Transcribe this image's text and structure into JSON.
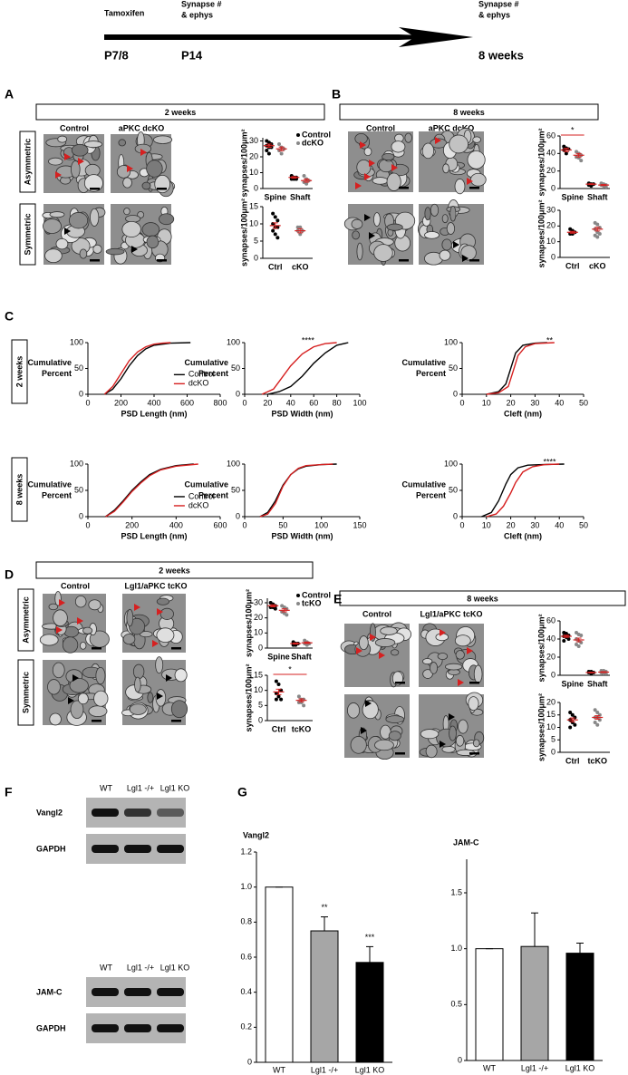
{
  "figure": {
    "timeline": {
      "events": [
        {
          "label": [
            "Tamoxifen"
          ],
          "time": "P7/8"
        },
        {
          "label": [
            "Synapse #",
            "& ephys"
          ],
          "time": "P14"
        },
        {
          "label": [
            "Synapse #",
            "& ephys"
          ],
          "time": "8 weeks"
        }
      ]
    },
    "panels": [
      {
        "letter": "A",
        "title": "2  weeks",
        "columns": [
          "Control",
          "aPKC dcKO"
        ],
        "rows": [
          "Asymmetric",
          "Symmetric"
        ]
      },
      {
        "letter": "B",
        "title": "8 weeks",
        "columns": [
          "Control",
          "aPKC dcKO"
        ]
      },
      {
        "letter": "C",
        "rows": [
          "2 weeks",
          "8 weeks"
        ]
      },
      {
        "letter": "D",
        "title": "2  weeks",
        "columns": [
          "Control",
          "Lgl1/aPKC tcKO"
        ],
        "rows": [
          "Asymmetric",
          "Symmetric"
        ]
      },
      {
        "letter": "E",
        "title": "8 weeks",
        "columns": [
          "Control",
          "Lgl1/aPKC tcKO"
        ]
      },
      {
        "letter": "F",
        "blots": [
          {
            "lanes": [
              "WT",
              "Lgl1 -/+",
              "Lgl1 KO"
            ],
            "bands": [
              "Vangl2",
              "GAPDH"
            ]
          },
          {
            "lanes": [
              "WT",
              "Lgl1 -/+",
              "Lgl1 KO"
            ],
            "bands": [
              "JAM-C",
              "GAPDH"
            ]
          }
        ]
      },
      {
        "letter": "G"
      }
    ]
  },
  "chart_data": [
    {
      "type": "strip",
      "ylabel": "synapses/100μm²",
      "categories": [
        "Spine",
        "Shaft"
      ],
      "ylim": [
        0,
        32
      ],
      "yticks": [
        0,
        10,
        20,
        30
      ],
      "series": [
        {
          "name": "Control",
          "color": "#000000",
          "values": [
            27,
            7
          ],
          "errors": [
            1,
            0.5
          ],
          "points": [
            [
              30,
              29,
              28,
              27,
              26,
              26,
              24,
              22
            ],
            [
              8,
              7,
              7,
              6,
              6,
              6
            ]
          ]
        },
        {
          "name": "dcKO",
          "color": "#888888",
          "values": [
            25,
            5
          ],
          "errors": [
            1.2,
            1
          ],
          "points": [
            [
              28,
              26,
              25,
              24,
              22
            ],
            [
              8,
              6,
              5,
              4,
              3
            ]
          ]
        }
      ]
    },
    {
      "type": "strip",
      "ylabel": "synapses/100μm²",
      "categories": [
        "Ctrl",
        "cKO"
      ],
      "ylim": [
        0,
        15
      ],
      "yticks": [
        0,
        5,
        10,
        15
      ],
      "colors": [
        "#000000",
        "#888888"
      ],
      "values": [
        9.5,
        8
      ],
      "errors": [
        0.8,
        0.6
      ],
      "points": [
        [
          13,
          12,
          11,
          10,
          9,
          9,
          8,
          7,
          6
        ],
        [
          9,
          9,
          8,
          8,
          7
        ]
      ]
    },
    {
      "type": "strip",
      "ylabel": "synapses/100μm²",
      "categories": [
        "Spine",
        "Shaft"
      ],
      "ylim": [
        0,
        60
      ],
      "yticks": [
        0,
        20,
        40,
        60
      ],
      "annotation": "*",
      "series": [
        {
          "color": "#000000",
          "values": [
            44,
            5
          ],
          "errors": [
            2,
            0.5
          ],
          "points": [
            [
              48,
              46,
              45,
              44,
              40
            ],
            [
              6,
              5,
              5,
              4,
              3
            ]
          ]
        },
        {
          "color": "#888888",
          "values": [
            38,
            4
          ],
          "errors": [
            2,
            0.6
          ],
          "points": [
            [
              42,
              40,
              38,
              36,
              35,
              32
            ],
            [
              6,
              5,
              4,
              4,
              3,
              2
            ]
          ]
        }
      ]
    },
    {
      "type": "strip",
      "ylabel": "synapses/100μm²",
      "categories": [
        "Ctrl",
        "cKO"
      ],
      "ylim": [
        0,
        30
      ],
      "yticks": [
        0,
        10,
        20,
        30
      ],
      "colors": [
        "#000000",
        "#888888"
      ],
      "values": [
        16,
        18
      ],
      "errors": [
        0.6,
        1.2
      ],
      "points": [
        [
          18,
          17,
          16,
          15,
          15
        ],
        [
          22,
          21,
          19,
          18,
          16,
          15,
          14,
          13
        ]
      ]
    },
    {
      "type": "line",
      "xlabel": "PSD Length (nm)",
      "ylabel": [
        "Cumulative",
        "Percent"
      ],
      "xlim": [
        0,
        800
      ],
      "xticks": [
        0,
        200,
        400,
        600,
        800
      ],
      "ylim": [
        0,
        100
      ],
      "yticks": [
        0,
        50,
        100
      ],
      "series": [
        {
          "name": "Control",
          "color": "#000000",
          "x": [
            100,
            150,
            200,
            250,
            300,
            350,
            400,
            500,
            620
          ],
          "values": [
            0,
            10,
            30,
            55,
            75,
            88,
            95,
            99,
            100
          ]
        },
        {
          "name": "dcKO",
          "color": "#d62020",
          "x": [
            100,
            150,
            200,
            250,
            300,
            350,
            400,
            450,
            500
          ],
          "values": [
            0,
            15,
            40,
            65,
            82,
            92,
            97,
            99,
            100
          ]
        }
      ]
    },
    {
      "type": "line",
      "xlabel": "PSD Width (nm)",
      "ylabel": [
        "Cumulative",
        "Percent"
      ],
      "xlim": [
        0,
        100
      ],
      "xticks": [
        0,
        20,
        40,
        60,
        80,
        100
      ],
      "ylim": [
        0,
        100
      ],
      "yticks": [
        0,
        50,
        100
      ],
      "annotation": "****",
      "series": [
        {
          "color": "#000000",
          "x": [
            20,
            30,
            40,
            50,
            60,
            70,
            80,
            90
          ],
          "values": [
            0,
            5,
            15,
            35,
            60,
            80,
            95,
            100
          ]
        },
        {
          "color": "#d62020",
          "x": [
            15,
            25,
            30,
            40,
            50,
            60,
            70,
            80
          ],
          "values": [
            0,
            10,
            25,
            55,
            78,
            92,
            98,
            100
          ]
        }
      ]
    },
    {
      "type": "line",
      "xlabel": "Cleft (nm)",
      "ylabel": [
        "Cumulative",
        "Percent"
      ],
      "xlim": [
        0,
        50
      ],
      "xticks": [
        0,
        10,
        20,
        30,
        40,
        50
      ],
      "ylim": [
        0,
        100
      ],
      "yticks": [
        0,
        50,
        100
      ],
      "annotation": "**",
      "series": [
        {
          "color": "#000000",
          "x": [
            10,
            15,
            18,
            20,
            22,
            25,
            30,
            35
          ],
          "values": [
            0,
            5,
            20,
            50,
            80,
            95,
            99,
            100
          ]
        },
        {
          "color": "#d62020",
          "x": [
            10,
            15,
            19,
            21,
            23,
            26,
            30,
            38
          ],
          "values": [
            0,
            3,
            15,
            45,
            75,
            92,
            98,
            100
          ]
        }
      ]
    },
    {
      "type": "line",
      "xlabel": "PSD Length (nm)",
      "ylabel": [
        "Cumulative",
        "Percent"
      ],
      "xlim": [
        0,
        600
      ],
      "xticks": [
        0,
        200,
        400,
        600
      ],
      "ylim": [
        0,
        100
      ],
      "yticks": [
        0,
        50,
        100
      ],
      "series": [
        {
          "name": "Control",
          "color": "#000000",
          "x": [
            80,
            120,
            160,
            200,
            240,
            280,
            330,
            400,
            480
          ],
          "values": [
            0,
            12,
            30,
            50,
            66,
            80,
            90,
            97,
            100
          ]
        },
        {
          "name": "dcKO",
          "color": "#d62020",
          "x": [
            80,
            120,
            160,
            200,
            240,
            280,
            330,
            400,
            500
          ],
          "values": [
            0,
            10,
            28,
            48,
            64,
            78,
            89,
            96,
            100
          ]
        }
      ]
    },
    {
      "type": "line",
      "xlabel": "PSD Width (nm)",
      "ylabel": [
        "Cumulative",
        "Percent"
      ],
      "xlim": [
        0,
        150
      ],
      "xticks": [
        0,
        50,
        100,
        150
      ],
      "ylim": [
        0,
        100
      ],
      "yticks": [
        0,
        50,
        100
      ],
      "series": [
        {
          "color": "#000000",
          "x": [
            20,
            30,
            40,
            50,
            60,
            70,
            80,
            100,
            120
          ],
          "values": [
            0,
            8,
            30,
            60,
            80,
            91,
            96,
            99,
            100
          ]
        },
        {
          "color": "#d62020",
          "x": [
            20,
            30,
            40,
            50,
            60,
            70,
            80,
            100,
            115
          ],
          "values": [
            0,
            5,
            25,
            58,
            80,
            92,
            97,
            99,
            100
          ]
        }
      ]
    },
    {
      "type": "line",
      "xlabel": "Cleft (nm)",
      "ylabel": [
        "Cumulative",
        "Percent"
      ],
      "xlim": [
        0,
        50
      ],
      "xticks": [
        0,
        10,
        20,
        30,
        40,
        50
      ],
      "ylim": [
        0,
        100
      ],
      "yticks": [
        0,
        50,
        100
      ],
      "annotation": "****",
      "series": [
        {
          "color": "#000000",
          "x": [
            8,
            12,
            15,
            18,
            20,
            23,
            27,
            33,
            42
          ],
          "values": [
            0,
            8,
            30,
            62,
            80,
            93,
            98,
            99,
            100
          ]
        },
        {
          "color": "#d62020",
          "x": [
            10,
            14,
            17,
            20,
            22,
            25,
            29,
            34,
            40
          ],
          "values": [
            0,
            5,
            20,
            45,
            65,
            85,
            95,
            99,
            100
          ]
        }
      ]
    },
    {
      "type": "strip",
      "ylabel": "synapses/100μm²",
      "categories": [
        "Spine",
        "Shaft"
      ],
      "ylim": [
        0,
        33
      ],
      "yticks": [
        0,
        10,
        20,
        30
      ],
      "series": [
        {
          "name": "Control",
          "color": "#000000",
          "values": [
            28,
            3
          ],
          "errors": [
            0.7,
            0.4
          ],
          "points": [
            [
              30,
              29,
              28,
              27,
              27,
              26
            ],
            [
              4,
              3,
              3,
              2,
              2
            ]
          ]
        },
        {
          "name": "tcKO",
          "color": "#888888",
          "values": [
            25,
            3.5
          ],
          "errors": [
            1,
            0.5
          ],
          "points": [
            [
              28,
              27,
              26,
              24,
              23,
              22
            ],
            [
              5,
              4,
              3,
              3,
              2
            ]
          ]
        }
      ]
    },
    {
      "type": "strip",
      "ylabel": "synapses/100μm²",
      "categories": [
        "Ctrl",
        "tcKO"
      ],
      "ylim": [
        0,
        15
      ],
      "yticks": [
        0,
        5,
        10,
        15
      ],
      "annotation": "*",
      "colors": [
        "#000000",
        "#888888"
      ],
      "values": [
        9.5,
        6.7
      ],
      "errors": [
        0.9,
        0.5
      ],
      "points": [
        [
          13,
          12,
          10,
          9,
          8,
          7,
          7
        ],
        [
          8,
          7,
          7,
          6,
          6,
          5
        ]
      ]
    },
    {
      "type": "strip",
      "ylabel": "synapses/100μm²",
      "categories": [
        "Spine",
        "Shaft"
      ],
      "ylim": [
        0,
        60
      ],
      "yticks": [
        0,
        20,
        40,
        60
      ],
      "series": [
        {
          "color": "#000000",
          "values": [
            43,
            3
          ],
          "errors": [
            1.2,
            0.4
          ],
          "points": [
            [
              47,
              46,
              44,
              43,
              42,
              40,
              38
            ],
            [
              4,
              4,
              3,
              3,
              2
            ]
          ]
        },
        {
          "color": "#888888",
          "values": [
            39,
            3.5
          ],
          "errors": [
            2,
            0.5
          ],
          "points": [
            [
              47,
              45,
              44,
              40,
              38,
              36,
              34,
              32
            ],
            [
              5,
              5,
              4,
              3,
              2,
              2
            ]
          ]
        }
      ]
    },
    {
      "type": "strip",
      "ylabel": "synapses/100μm²",
      "categories": [
        "Ctrl",
        "tcKO"
      ],
      "ylim": [
        0,
        20
      ],
      "yticks": [
        0,
        5,
        10,
        15,
        20
      ],
      "colors": [
        "#000000",
        "#888888"
      ],
      "values": [
        13,
        14
      ],
      "errors": [
        0.8,
        0.7
      ],
      "points": [
        [
          16,
          15,
          14,
          13,
          12,
          11,
          10
        ],
        [
          17,
          16,
          15,
          14,
          14,
          13,
          12,
          11
        ]
      ]
    },
    {
      "type": "bar",
      "title": "Vangl2",
      "categories": [
        "WT",
        "Lgl1 -/+",
        "Lgl1 KO"
      ],
      "values": [
        1.0,
        0.75,
        0.57
      ],
      "errors": [
        0,
        0.08,
        0.09
      ],
      "colors": [
        "#ffffff",
        "#a6a6a6",
        "#000000"
      ],
      "stars": [
        null,
        "**",
        "***"
      ],
      "ylim": [
        0,
        1.2
      ],
      "yticks": [
        0,
        0.2,
        0.4,
        0.6,
        0.8,
        {
          "value": 1,
          "label": "1.0"
        },
        1.2
      ]
    },
    {
      "type": "bar",
      "title": "JAM-C",
      "categories": [
        "WT",
        "Lgl1 -/+",
        "Lgl1 KO"
      ],
      "values": [
        1.0,
        1.02,
        0.96
      ],
      "errors": [
        0,
        0.3,
        0.09
      ],
      "colors": [
        "#ffffff",
        "#a6a6a6",
        "#000000"
      ],
      "ylim": [
        0,
        1.8
      ],
      "yticks": [
        0,
        0.5,
        {
          "value": 1,
          "label": "1.0"
        },
        1.5
      ]
    }
  ]
}
